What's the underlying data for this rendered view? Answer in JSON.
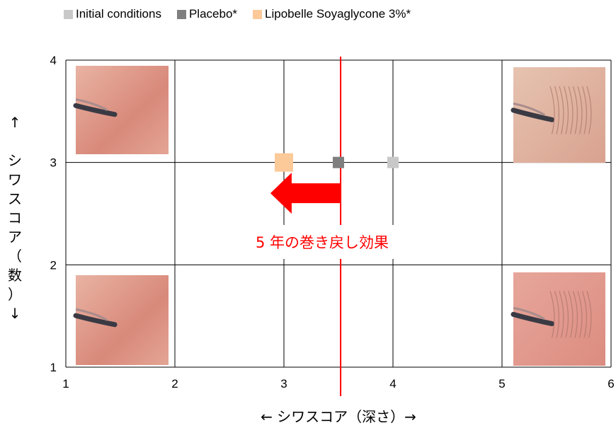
{
  "legend": [
    {
      "name": "Initial conditions",
      "color": "#c8c8c8"
    },
    {
      "name": "Placebo*",
      "color": "#7f7f7f"
    },
    {
      "name": "Lipobelle Soyaglycone 3%*",
      "color": "#fcc999"
    }
  ],
  "chart_data": {
    "type": "scatter",
    "title": "",
    "xlabel": "← シワスコア（深さ）→",
    "ylabel": "↑ シワスコア（数）↓",
    "xlim": [
      1,
      6
    ],
    "ylim": [
      1,
      4
    ],
    "xticks": [
      "1",
      "2",
      "3",
      "4",
      "5",
      "6"
    ],
    "yticks": [
      "1",
      "2",
      "3",
      "4"
    ],
    "grid": true,
    "legend_position": "top",
    "series": [
      {
        "name": "Initial conditions",
        "color": "#c8c8c8",
        "points": [
          {
            "x": 4.0,
            "y": 3.0
          }
        ]
      },
      {
        "name": "Placebo*",
        "color": "#7f7f7f",
        "points": [
          {
            "x": 3.5,
            "y": 3.0
          }
        ]
      },
      {
        "name": "Lipobelle Soyaglycone 3%*",
        "color": "#fcc999",
        "points": [
          {
            "x": 3.0,
            "y": 3.0
          }
        ]
      }
    ],
    "reference_line": {
      "x": 3.52,
      "color": "#ff0000"
    },
    "annotation": {
      "text": "5 年の巻き戻し効果",
      "color": "#ff0000",
      "arrow_from_x": 3.52,
      "arrow_to_x": 2.98,
      "arrow_y": 2.7
    }
  }
}
